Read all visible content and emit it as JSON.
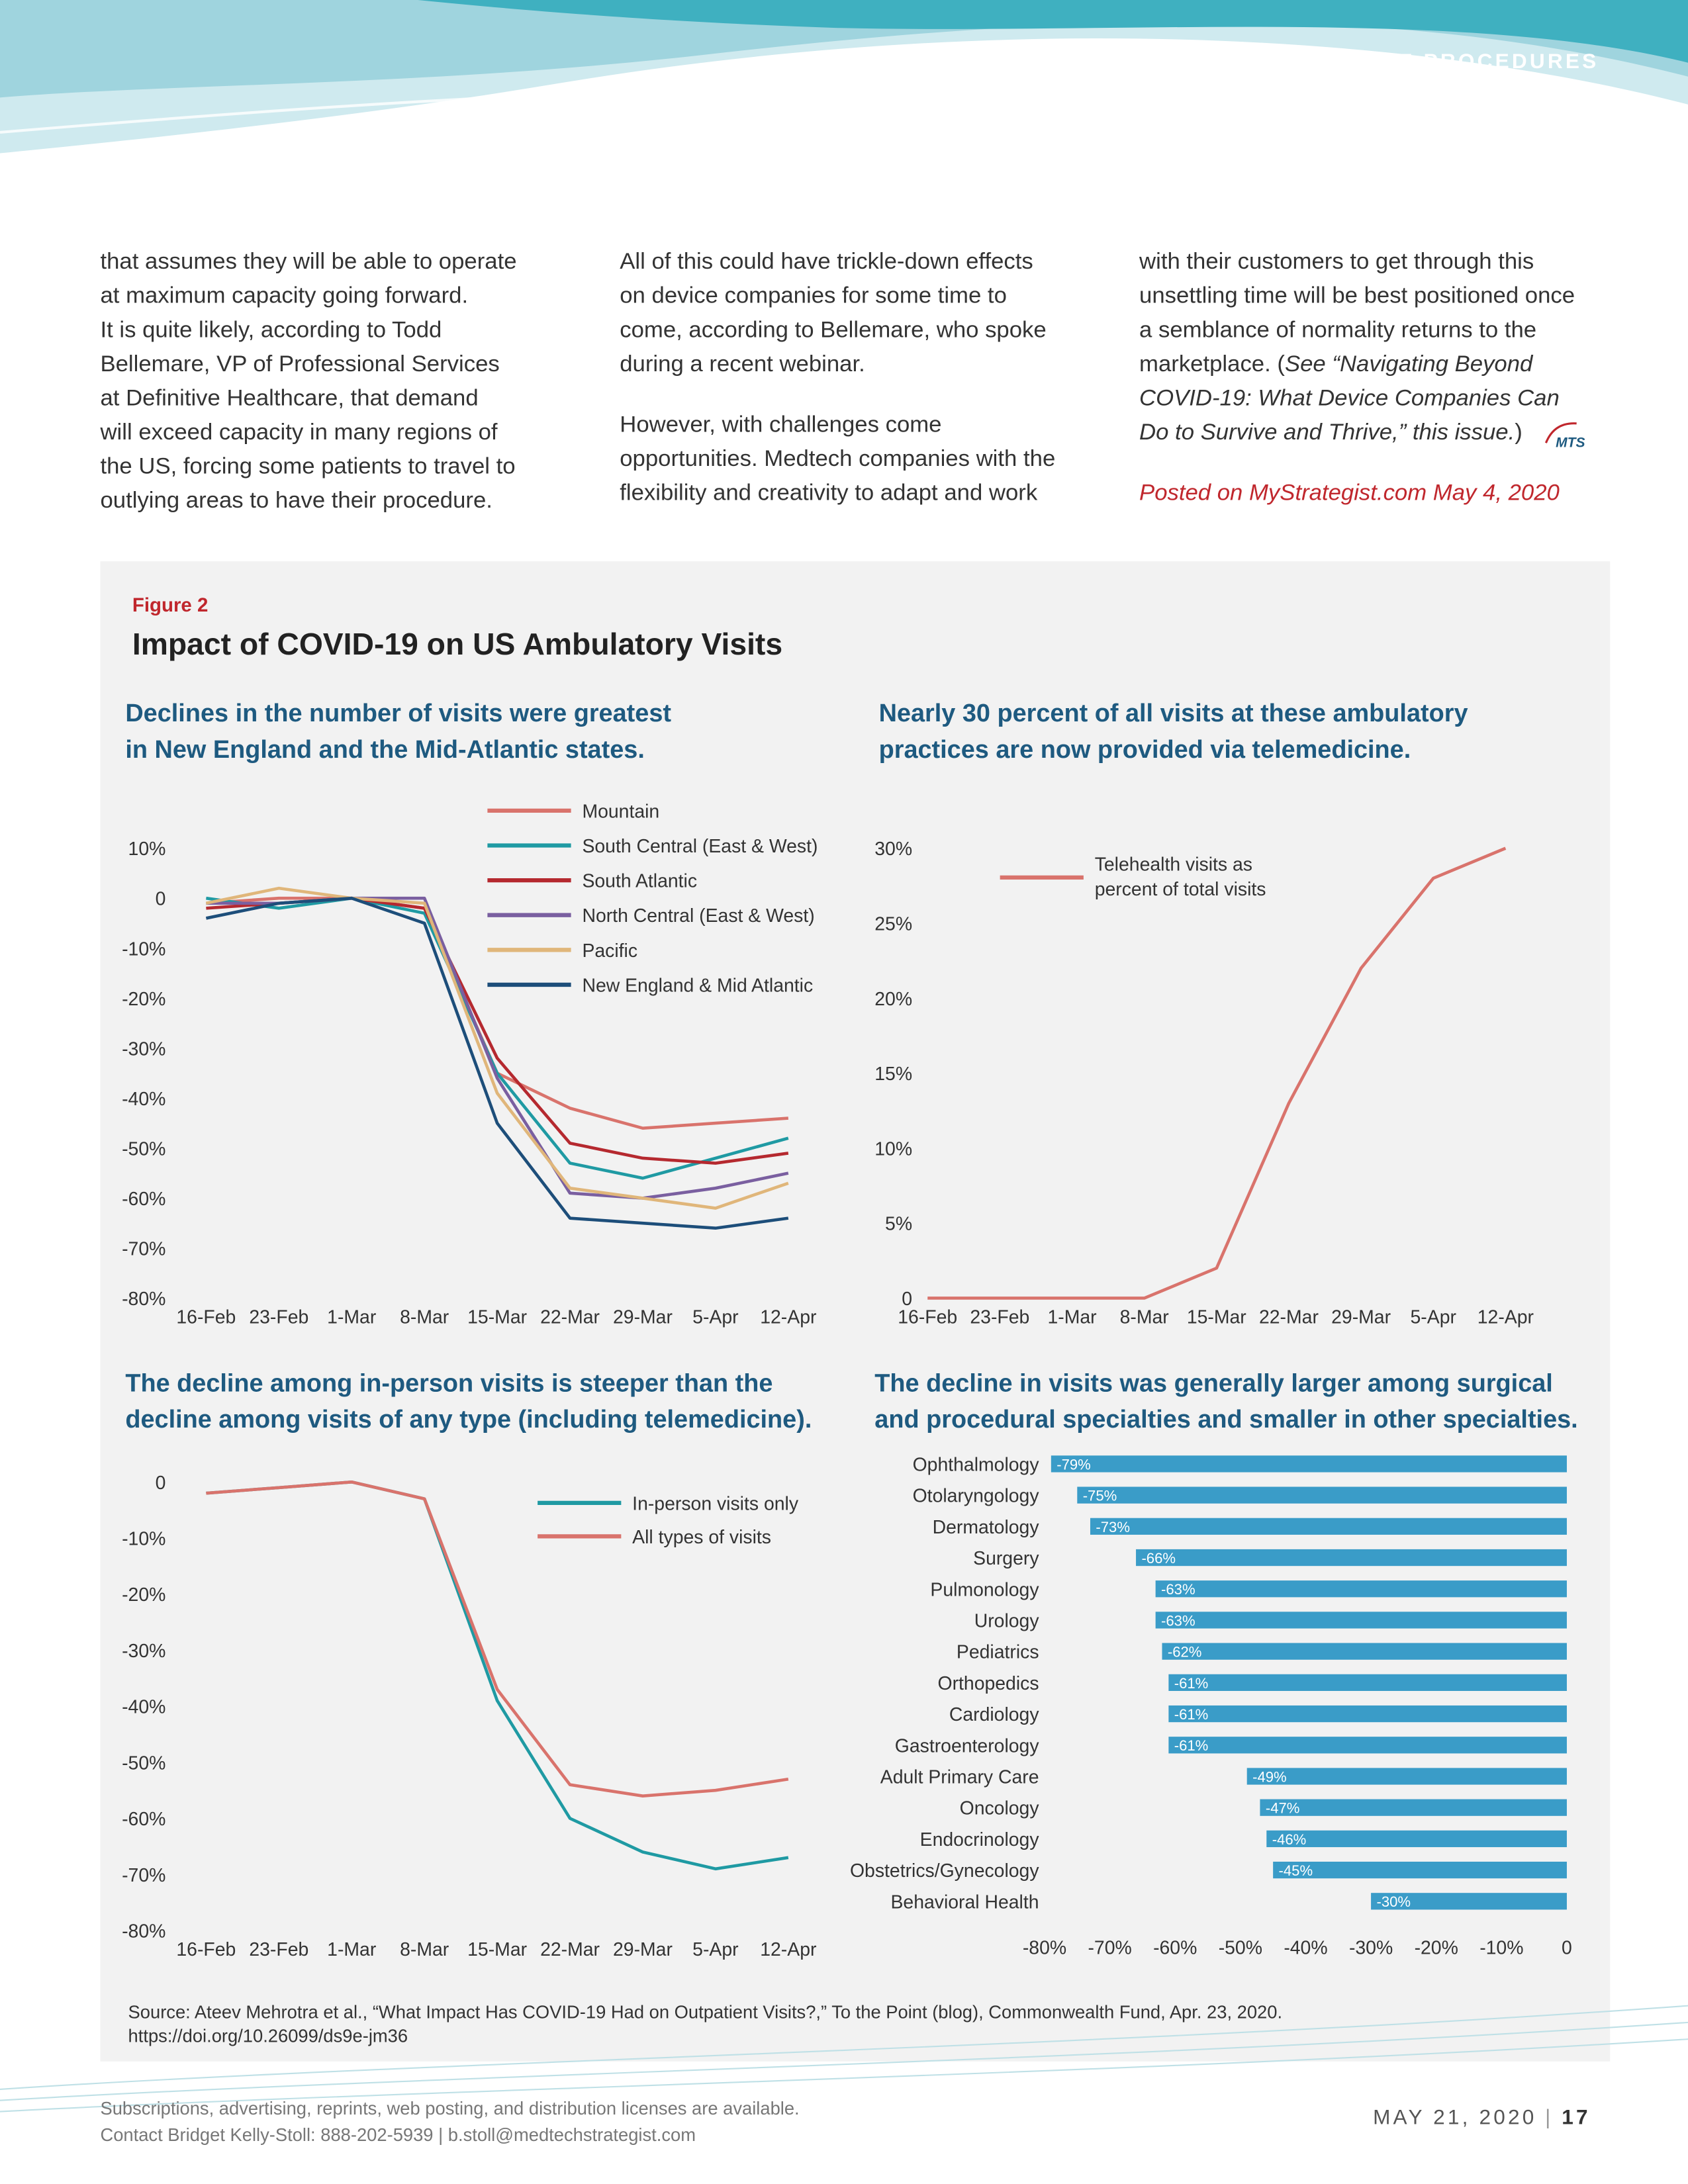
{
  "header": {
    "section": "ELECTIVE PROCEDURES"
  },
  "body": {
    "columns": [
      [
        [
          "that assumes they will be able to operate",
          "at maximum capacity going forward.",
          "It is quite likely, according to Todd",
          "Bellemare, VP of Professional Services",
          "at Definitive Healthcare, that demand",
          "will exceed capacity in many regions of",
          "the US, forcing some patients to travel to",
          "outlying areas to have their procedure."
        ]
      ],
      [
        [
          "All of this could have trickle-down effects",
          "on device companies for some time to",
          "come, according to Bellemare, who spoke",
          "during a recent webinar."
        ],
        [
          "However, with challenges come",
          "opportunities. Medtech companies with the",
          "flexibility and creativity to adapt and work"
        ]
      ],
      [
        [
          "with their customers to get through this",
          "unsettling time will be best positioned once",
          "a semblance of normality returns to the",
          [
            {
              "text": "marketplace. (",
              "italic": false
            },
            {
              "text": "See “Navigating Beyond",
              "italic": true
            }
          ],
          [
            {
              "text": "COVID-19: What Device Companies Can",
              "italic": true
            }
          ],
          [
            {
              "text": "Do to Survive and Thrive,” this issue.",
              "italic": true
            },
            {
              "text": ")",
              "italic": false
            }
          ]
        ]
      ]
    ],
    "logo": "MTS",
    "note": "Posted on MyStrategist.com May 4, 2020"
  },
  "figure": {
    "label": "Figure 2",
    "title": "Impact of COVID-19 on US Ambulatory Visits",
    "source": [
      "Source: Ateev Mehrotra et al., “What Impact Has COVID-19 Had on Outpatient Visits?,” To the Point (blog), Commonwealth Fund, Apr. 23, 2020.",
      "https://doi.org/10.26099/ds9e-jm36"
    ]
  },
  "chart_data": [
    {
      "type": "line",
      "subtitle": [
        "Declines in the number of visits were greatest",
        "in New England and the Mid-Atlantic states."
      ],
      "categories": [
        "16-Feb",
        "23-Feb",
        "1-Mar",
        "8-Mar",
        "15-Mar",
        "22-Mar",
        "29-Mar",
        "5-Apr",
        "12-Apr"
      ],
      "series": [
        {
          "name": "Mountain",
          "color": "#d9736c",
          "values": [
            -1,
            0,
            0,
            -2,
            -35,
            -42,
            -46,
            -45,
            -44
          ]
        },
        {
          "name": "South Central (East & West)",
          "color": "#1f9aa3",
          "values": [
            0,
            -2,
            0,
            -3,
            -35,
            -53,
            -56,
            -52,
            -48
          ]
        },
        {
          "name": "South Atlantic",
          "color": "#b5292f",
          "values": [
            -2,
            -1,
            0,
            -2,
            -32,
            -49,
            -52,
            -53,
            -51
          ]
        },
        {
          "name": "North Central (East & West)",
          "color": "#7a5fa0",
          "values": [
            -1,
            -1,
            0,
            0,
            -36,
            -59,
            -60,
            -58,
            -55
          ]
        },
        {
          "name": "Pacific",
          "color": "#e0b67a",
          "values": [
            -1,
            2,
            0,
            -1,
            -39,
            -58,
            -60,
            -62,
            -57
          ]
        },
        {
          "name": "New England & Mid Atlantic",
          "color": "#1d4e7a",
          "values": [
            -4,
            -1,
            0,
            -5,
            -45,
            -64,
            -65,
            -66,
            -64
          ]
        }
      ],
      "ylim": [
        -80,
        10
      ],
      "yticks": [
        {
          "value": 10,
          "label": "10%"
        },
        0,
        {
          "value": -10,
          "label": "-10%"
        },
        {
          "value": -20,
          "label": "-20%"
        },
        {
          "value": -30,
          "label": "-30%"
        },
        {
          "value": -40,
          "label": "-40%"
        },
        {
          "value": -50,
          "label": "-50%"
        },
        {
          "value": -60,
          "label": "-60%"
        },
        {
          "value": -70,
          "label": "-70%"
        },
        {
          "value": -80,
          "label": "-80%"
        }
      ]
    },
    {
      "type": "line",
      "subtitle": [
        "Nearly 30 percent of all visits at these ambulatory",
        "practices are now provided via telemedicine."
      ],
      "categories": [
        "16-Feb",
        "23-Feb",
        "1-Mar",
        "8-Mar",
        "15-Mar",
        "22-Mar",
        "29-Mar",
        "5-Apr",
        "12-Apr"
      ],
      "series": [
        {
          "name": "Telehealth visits as percent of total visits",
          "color": "#d9736c",
          "values": [
            0,
            0,
            0,
            0,
            2,
            13,
            22,
            28,
            30
          ]
        }
      ],
      "ylim": [
        0,
        30
      ],
      "yticks": [
        {
          "value": 30,
          "label": "30%"
        },
        {
          "value": 25,
          "label": "25%"
        },
        {
          "value": 20,
          "label": "20%"
        },
        {
          "value": 15,
          "label": "15%"
        },
        {
          "value": 10,
          "label": "10%"
        },
        {
          "value": 5,
          "label": "5%"
        },
        0
      ]
    },
    {
      "type": "line",
      "subtitle": [
        "The decline among in-person visits is steeper than the",
        "decline among visits of any type (including telemedicine)."
      ],
      "categories": [
        "16-Feb",
        "23-Feb",
        "1-Mar",
        "8-Mar",
        "15-Mar",
        "22-Mar",
        "29-Mar",
        "5-Apr",
        "12-Apr"
      ],
      "series": [
        {
          "name": "In-person visits only",
          "color": "#1f9aa3",
          "values": [
            -2,
            -1,
            0,
            -3,
            -39,
            -60,
            -66,
            -69,
            -67
          ]
        },
        {
          "name": "All types of visits",
          "color": "#d9736c",
          "values": [
            -2,
            -1,
            0,
            -3,
            -37,
            -54,
            -56,
            -55,
            -53
          ]
        }
      ],
      "ylim": [
        -80,
        0
      ],
      "yticks": [
        0,
        {
          "value": -10,
          "label": "-10%"
        },
        {
          "value": -20,
          "label": "-20%"
        },
        {
          "value": -30,
          "label": "-30%"
        },
        {
          "value": -40,
          "label": "-40%"
        },
        {
          "value": -50,
          "label": "-50%"
        },
        {
          "value": -60,
          "label": "-60%"
        },
        {
          "value": -70,
          "label": "-70%"
        },
        {
          "value": -80,
          "label": "-80%"
        }
      ]
    },
    {
      "type": "bar",
      "orientation": "horizontal",
      "color": "#3a9cc8",
      "subtitle": [
        "The decline in visits was generally larger among surgical",
        "and procedural specialties and smaller in other specialties."
      ],
      "categories": [
        "Ophthalmology",
        "Otolaryngology",
        "Dermatology",
        "Surgery",
        "Pulmonology",
        "Urology",
        "Pediatrics",
        "Orthopedics",
        "Cardiology",
        "Gastroenterology",
        "Adult Primary Care",
        "Oncology",
        "Endocrinology",
        "Obstetrics/Gynecology",
        "Behavioral Health"
      ],
      "values": [
        -79,
        -75,
        -73,
        -66,
        -63,
        -63,
        -62,
        -61,
        -61,
        -61,
        -49,
        -47,
        -46,
        -45,
        -30
      ],
      "value_labels": [
        "-79%",
        "-75%",
        "-73%",
        "-66%",
        "-63%",
        "-63%",
        "-62%",
        "-61%",
        "-61%",
        "-61%",
        "-49%",
        "-47%",
        "-46%",
        "-45%",
        "-30%"
      ],
      "xlim": [
        -80,
        0
      ],
      "xticks": [
        {
          "value": -80,
          "label": "-80%"
        },
        {
          "value": -70,
          "label": "-70%"
        },
        {
          "value": -60,
          "label": "-60%"
        },
        {
          "value": -50,
          "label": "-50%"
        },
        {
          "value": -40,
          "label": "-40%"
        },
        {
          "value": -30,
          "label": "-30%"
        },
        {
          "value": -20,
          "label": "-20%"
        },
        {
          "value": -10,
          "label": "-10%"
        },
        0
      ]
    }
  ],
  "footer": {
    "lines": [
      "Subscriptions, advertising, reprints, web posting, and distribution licenses are available.",
      "Contact Bridget Kelly-Stoll:  888-202-5939 | b.stoll@medtechstrategist.com"
    ],
    "date": "MAY 21, 2020",
    "page": "17"
  }
}
